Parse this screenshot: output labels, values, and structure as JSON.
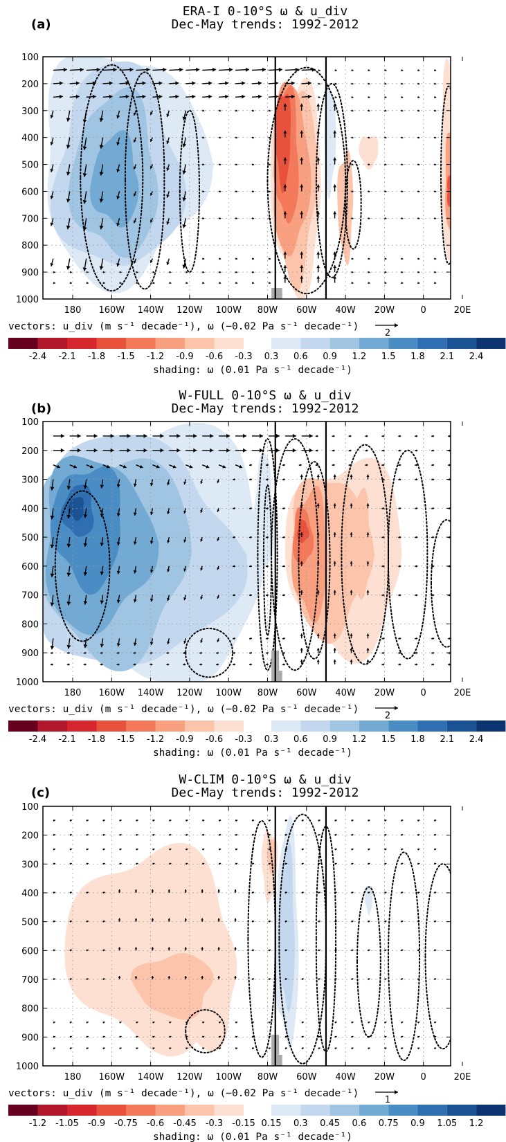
{
  "chart_data": [
    {
      "type": "heatmap",
      "panel_label": "(a)",
      "title_line1": "ERA-I 0-10°S ω & u_div",
      "title_line2": "Dec-May trends: 1992-2012",
      "y_ticks": [
        "100",
        "200",
        "300",
        "400",
        "500",
        "600",
        "700",
        "800",
        "900",
        "1000"
      ],
      "x_ticks": [
        "180",
        "160W",
        "140W",
        "120W",
        "100W",
        "80W",
        "60W",
        "40W",
        "20W",
        "0",
        "20E"
      ],
      "ylim": [
        100,
        1000
      ],
      "vector_caption": "vectors: u_div (m s⁻¹ decade⁻¹), ω (−0.02 Pa s⁻¹ decade⁻¹)",
      "vector_ref_label": "2",
      "colorbar_neg_labels": [
        "-2.4",
        "-2.1",
        "-1.8",
        "-1.5",
        "-1.2",
        "-0.9",
        "-0.6",
        "-0.3"
      ],
      "colorbar_pos_labels": [
        "0.3",
        "0.6",
        "0.9",
        "1.2",
        "1.5",
        "1.8",
        "2.1",
        "2.4"
      ],
      "shading_caption": "shading: ω (0.01 Pa s⁻¹ decade⁻¹)",
      "vertical_lines_lon": [
        -76,
        -50
      ]
    },
    {
      "type": "heatmap",
      "panel_label": "(b)",
      "title_line1": "W-FULL 0-10°S ω & u_div",
      "title_line2": "Dec-May trends: 1992-2012",
      "y_ticks": [
        "100",
        "200",
        "300",
        "400",
        "500",
        "600",
        "700",
        "800",
        "900",
        "1000"
      ],
      "x_ticks": [
        "180",
        "160W",
        "140W",
        "120W",
        "100W",
        "80W",
        "60W",
        "40W",
        "20W",
        "0",
        "20E"
      ],
      "ylim": [
        100,
        1000
      ],
      "vector_caption": "vectors: u_div (m s⁻¹ decade⁻¹), ω (−0.02 Pa s⁻¹ decade⁻¹)",
      "vector_ref_label": "2",
      "colorbar_neg_labels": [
        "-2.4",
        "-2.1",
        "-1.8",
        "-1.5",
        "-1.2",
        "-0.9",
        "-0.6",
        "-0.3"
      ],
      "colorbar_pos_labels": [
        "0.3",
        "0.6",
        "0.9",
        "1.2",
        "1.5",
        "1.8",
        "2.1",
        "2.4"
      ],
      "shading_caption": "shading: ω (0.01 Pa s⁻¹ decade⁻¹)",
      "vertical_lines_lon": [
        -76,
        -50
      ]
    },
    {
      "type": "heatmap",
      "panel_label": "(c)",
      "title_line1": "W-CLIM 0-10°S ω & u_div",
      "title_line2": "Dec-May trends: 1992-2012",
      "y_ticks": [
        "100",
        "200",
        "300",
        "400",
        "500",
        "600",
        "700",
        "800",
        "900",
        "1000"
      ],
      "x_ticks": [
        "180",
        "160W",
        "140W",
        "120W",
        "100W",
        "80W",
        "60W",
        "40W",
        "20W",
        "0",
        "20E"
      ],
      "ylim": [
        100,
        1000
      ],
      "vector_caption": "vectors: u_div (m s⁻¹ decade⁻¹), ω (−0.02 Pa s⁻¹ decade⁻¹)",
      "vector_ref_label": "1",
      "colorbar_neg_labels": [
        "-1.2",
        "-1.05",
        "-0.9",
        "-0.75",
        "-0.6",
        "-0.45",
        "-0.3",
        "-0.15"
      ],
      "colorbar_pos_labels": [
        "0.15",
        "0.3",
        "0.45",
        "0.6",
        "0.75",
        "0.9",
        "1.05",
        "1.2"
      ],
      "shading_caption": "shading: ω (0.01 Pa s⁻¹ decade⁻¹)",
      "vertical_lines_lon": [
        -76,
        -50
      ]
    }
  ],
  "colors": {
    "neg": [
      "#67001f",
      "#b2182b",
      "#d6272e",
      "#e8513c",
      "#f4795a",
      "#f9a081",
      "#fcc4ab",
      "#fde0d2"
    ],
    "pos": [
      "#ddeaf6",
      "#c3d7ee",
      "#9fc5e2",
      "#72aad4",
      "#4a8dc4",
      "#2f6fb1",
      "#1a5294",
      "#0b3470"
    ],
    "topography": "#aaaaaa"
  }
}
